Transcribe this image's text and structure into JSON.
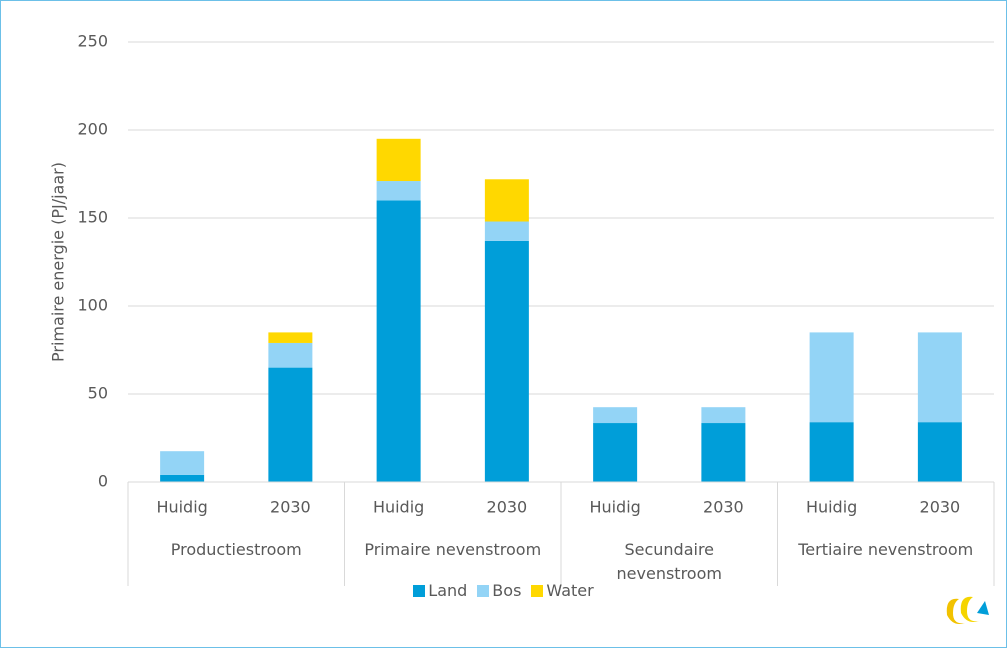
{
  "chart_data": {
    "type": "stacked_bar",
    "ylabel": "Primaire energie (PJ/jaar)",
    "categories": [
      "Huidig",
      "2030",
      "Huidig",
      "2030",
      "Huidig",
      "2030",
      "Huidig",
      "2030"
    ],
    "groups": [
      "Productiestroom",
      "Primaire nevenstroom",
      "Secundaire nevenstroom",
      "Tertiaire nevenstroom"
    ],
    "series": [
      {
        "name": "Land",
        "color": "#009ed9",
        "values": [
          4,
          65,
          160,
          137,
          33.5,
          33.5,
          34,
          34
        ]
      },
      {
        "name": "Bos",
        "color": "#93d4f6",
        "values": [
          13.5,
          14,
          11,
          11,
          9,
          9,
          51,
          51
        ]
      },
      {
        "name": "Water",
        "color": "#ffd800",
        "values": [
          0,
          6,
          24,
          24,
          0,
          0,
          0,
          0
        ]
      }
    ],
    "ylim": [
      0,
      250
    ],
    "yticks": [
      0,
      50,
      100,
      150,
      200,
      250
    ],
    "grid": true,
    "legend": "bottom"
  }
}
